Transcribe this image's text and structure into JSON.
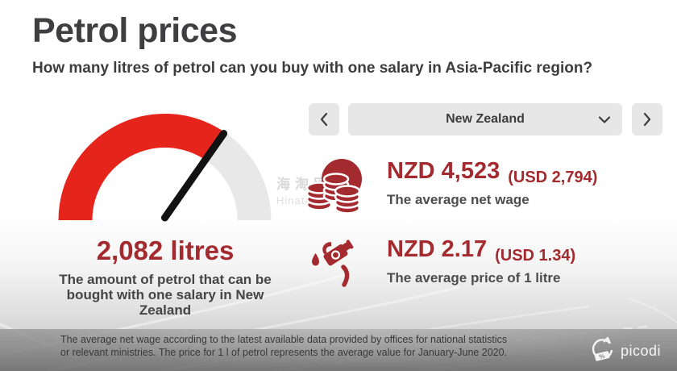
{
  "header": {
    "title": "Petrol prices",
    "subtitle": "How many litres of petrol can you buy with one salary in Asia-Pacific region?"
  },
  "selector": {
    "country": "New Zealand"
  },
  "gauge": {
    "type": "gauge",
    "value_litres": 2082,
    "value_label": "2,082 litres",
    "percent_filled": 69,
    "desc_lines": [
      "The amount of petrol that can be",
      "bought with one salary in New",
      "Zealand"
    ]
  },
  "stats": {
    "wage": {
      "amount": "NZD 4,523",
      "usd": "(USD 2,794)",
      "caption": "The average net wage"
    },
    "price": {
      "amount": "NZD 2.17",
      "usd": "(USD 1.34)",
      "caption": "The average price of 1 litre"
    }
  },
  "footer": {
    "lines": [
      "The average net wage according to the latest available data provided by offices for national statistics",
      "or relevant ministries. The price for 1 l of petrol represents the average value for January-June 2020."
    ],
    "logo_text": "picodi"
  },
  "watermark": {
    "cjk": "海淘网",
    "latin": "Hinatao"
  },
  "icons": {
    "prev": "chevron-left-icon",
    "next": "chevron-right-icon",
    "dropdown": "chevron-down-icon",
    "wage": "coins-icon",
    "price": "fuel-pump-icon",
    "logo": "picodi-logo-icon"
  },
  "colors": {
    "accent_red": "#e5241c",
    "dark_red": "#a32a2e",
    "arc_gray": "#e8e8e8",
    "needle_black": "#121212",
    "text_dark": "#3d3d3d",
    "control_bg": "#e7e7e7"
  }
}
